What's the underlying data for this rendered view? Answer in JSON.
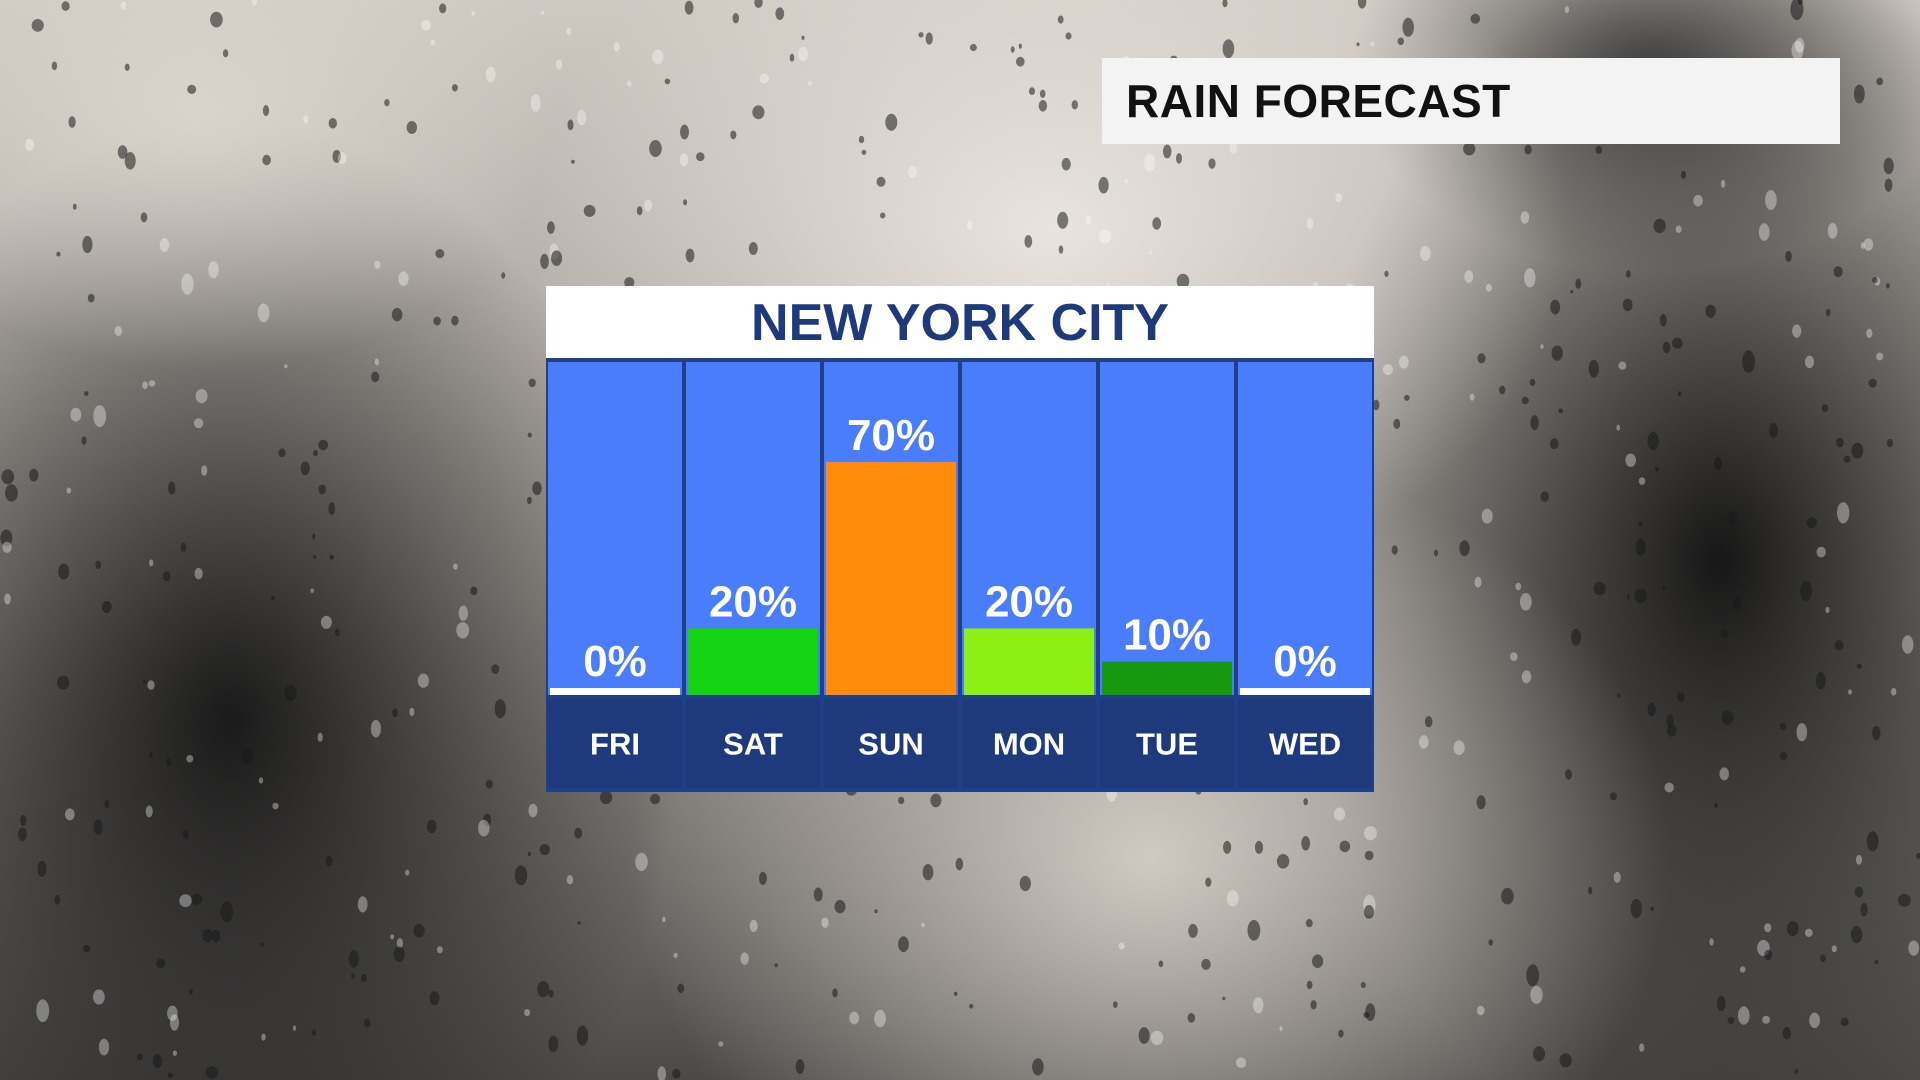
{
  "header": {
    "title": "RAIN FORECAST"
  },
  "panel": {
    "title": "NEW YORK CITY"
  },
  "colors": {
    "column_bg": "#4a7dfc",
    "column_border": "#1f3f86",
    "label_bg": "#1e3a7c",
    "zero": "#ffffff",
    "green": "#13d313",
    "orange": "#ff8c0a",
    "lime": "#8cf017",
    "dark_green": "#16990f"
  },
  "chart_data": {
    "type": "bar",
    "categories": [
      "FRI",
      "SAT",
      "SUN",
      "MON",
      "TUE",
      "WED"
    ],
    "values": [
      0,
      20,
      70,
      20,
      10,
      0
    ],
    "labels": [
      "0%",
      "20%",
      "70%",
      "20%",
      "10%",
      "0%"
    ],
    "bar_colors": [
      "#ffffff",
      "#13d313",
      "#ff8c0a",
      "#8cf017",
      "#16990f",
      "#ffffff"
    ],
    "ylim": [
      0,
      100
    ],
    "title": "NEW YORK CITY",
    "xlabel": "",
    "ylabel": "",
    "grid": false,
    "legend": "none"
  }
}
